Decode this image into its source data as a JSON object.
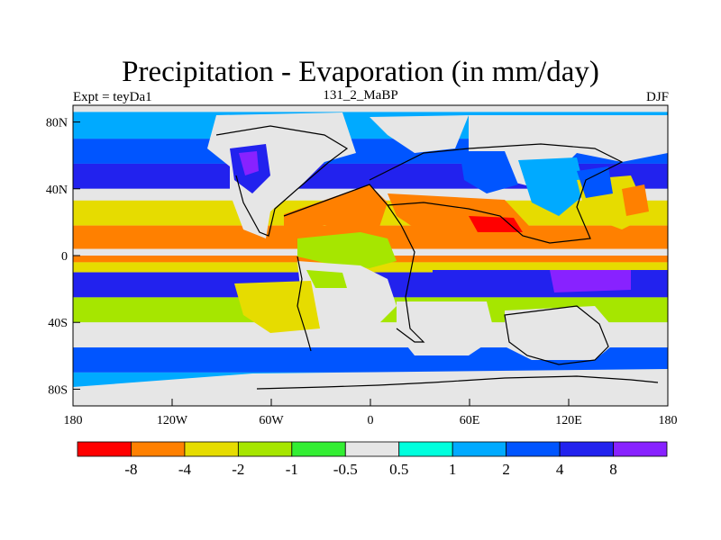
{
  "title": "Precipitation - Evaporation (in mm/day)",
  "left_label": "Expt = teyDa1",
  "center_label": "131_2_MaBP",
  "right_label": "DJF",
  "chart_data": {
    "type": "heatmap",
    "title": "Precipitation - Evaporation (in mm/day)",
    "x_ticks": [
      "180",
      "120W",
      "60W",
      "0",
      "60E",
      "120E",
      "180"
    ],
    "x_tick_values": [
      -180,
      -120,
      -60,
      0,
      60,
      120,
      180
    ],
    "y_ticks": [
      "80N",
      "40N",
      "0",
      "40S",
      "80S"
    ],
    "y_tick_values": [
      80,
      40,
      0,
      -40,
      -80
    ],
    "xlim": [
      -180,
      180
    ],
    "ylim": [
      -90,
      90
    ],
    "colorbar": {
      "labels": [
        "-8",
        "-4",
        "-2",
        "-1",
        "-0.5",
        "0.5",
        "1",
        "2",
        "4",
        "8"
      ],
      "colors": [
        "#ff0000",
        "#ff8000",
        "#e6dc00",
        "#a6e600",
        "#33ee33",
        "#e6e6e6",
        "#00ffdd",
        "#00aaff",
        "#0055ff",
        "#2222ee",
        "#8822ff"
      ]
    },
    "bands": [
      {
        "lat_range": [
          70,
          86
        ],
        "level": "1"
      },
      {
        "lat_range": [
          55,
          70
        ],
        "level": "2"
      },
      {
        "lat_range": [
          40,
          55
        ],
        "level": "4"
      },
      {
        "lat_range": [
          33,
          40
        ],
        "level": "0.5"
      },
      {
        "lat_range": [
          18,
          33
        ],
        "level": "-2"
      },
      {
        "lat_range": [
          4,
          18
        ],
        "level": "-4"
      },
      {
        "lat_range": [
          0,
          4
        ],
        "level": "0.5"
      },
      {
        "lat_range": [
          -4,
          0
        ],
        "level": "-4"
      },
      {
        "lat_range": [
          -10,
          -4
        ],
        "level": "-2"
      },
      {
        "lat_range": [
          -25,
          -10
        ],
        "level": "4"
      },
      {
        "lat_range": [
          -40,
          -25
        ],
        "level": "-1"
      },
      {
        "lat_range": [
          -55,
          -40
        ],
        "level": "0.5"
      },
      {
        "lat_range": [
          -70,
          -55
        ],
        "level": "2"
      },
      {
        "lat_range": [
          -90,
          -70
        ],
        "level": "1"
      }
    ]
  }
}
